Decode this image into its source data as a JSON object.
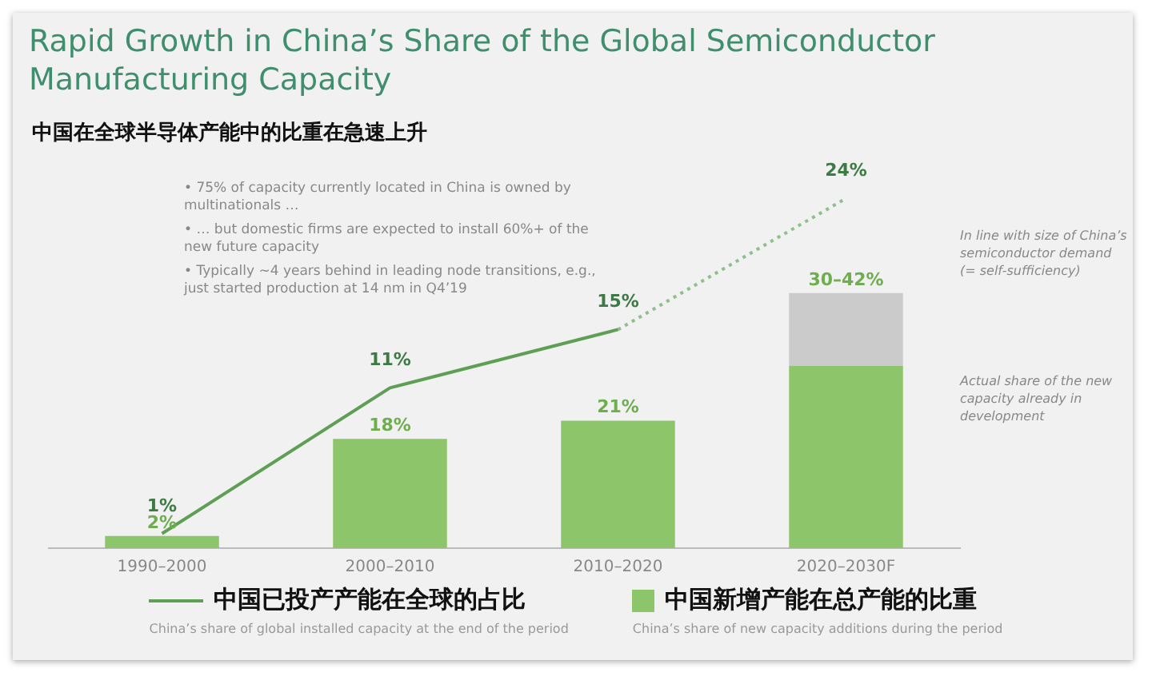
{
  "chart_data": {
    "type": "bar",
    "title": "Rapid Growth in China’s Share of the Global Semiconductor Manufacturing Capacity",
    "subtitle": "中国在全球半导体产能中的比重在急速上升",
    "categories": [
      "1990–2000",
      "2000–2010",
      "2010–2020",
      "2020–2030F"
    ],
    "series": [
      {
        "name": "中国已投产产能在全球的占比",
        "type": "line",
        "axis": "y2",
        "color": "#5e9f55",
        "line_style": "solid",
        "values": [
          1,
          11,
          15,
          null
        ],
        "value_labels": [
          "1%",
          "11%",
          "15%",
          null
        ]
      },
      {
        "type": "line",
        "axis": "y2",
        "color": "#8fbf8a",
        "line_style": "dotted",
        "values": [
          null,
          null,
          15,
          24
        ],
        "value_labels": [
          null,
          null,
          null,
          "24%"
        ]
      },
      {
        "name": "中国新增产能在总产能的比重",
        "color": "#8cc56a",
        "values": [
          2,
          18,
          21,
          30
        ],
        "value_labels": [
          "2%",
          "18%",
          "21%",
          null
        ]
      },
      {
        "color": "#cbcbcb",
        "values": [
          null,
          null,
          null,
          12
        ]
      }
    ],
    "stacked": true,
    "tick_labels": "x",
    "grid": false,
    "legend": "bottom",
    "marker": "none",
    "annotations": [
      "• 75% of capacity currently located in China is owned by multinationals …",
      "• … but domestic firms are expected to install 60%+ of the new future capacity",
      "• Typically ~4 years behind in leading node transitions, e.g., just started production at 14 nm in Q4’19",
      "In line with size of China’s semiconductor demand (= self-sufficiency)",
      "Actual share of the new capacity already in development",
      "China’s share of global installed capacity at the end of the period",
      "China’s share of new capacity additions during the period",
      {
        "text": "30–42%",
        "x": "2020–2030F",
        "y": 42
      }
    ]
  }
}
